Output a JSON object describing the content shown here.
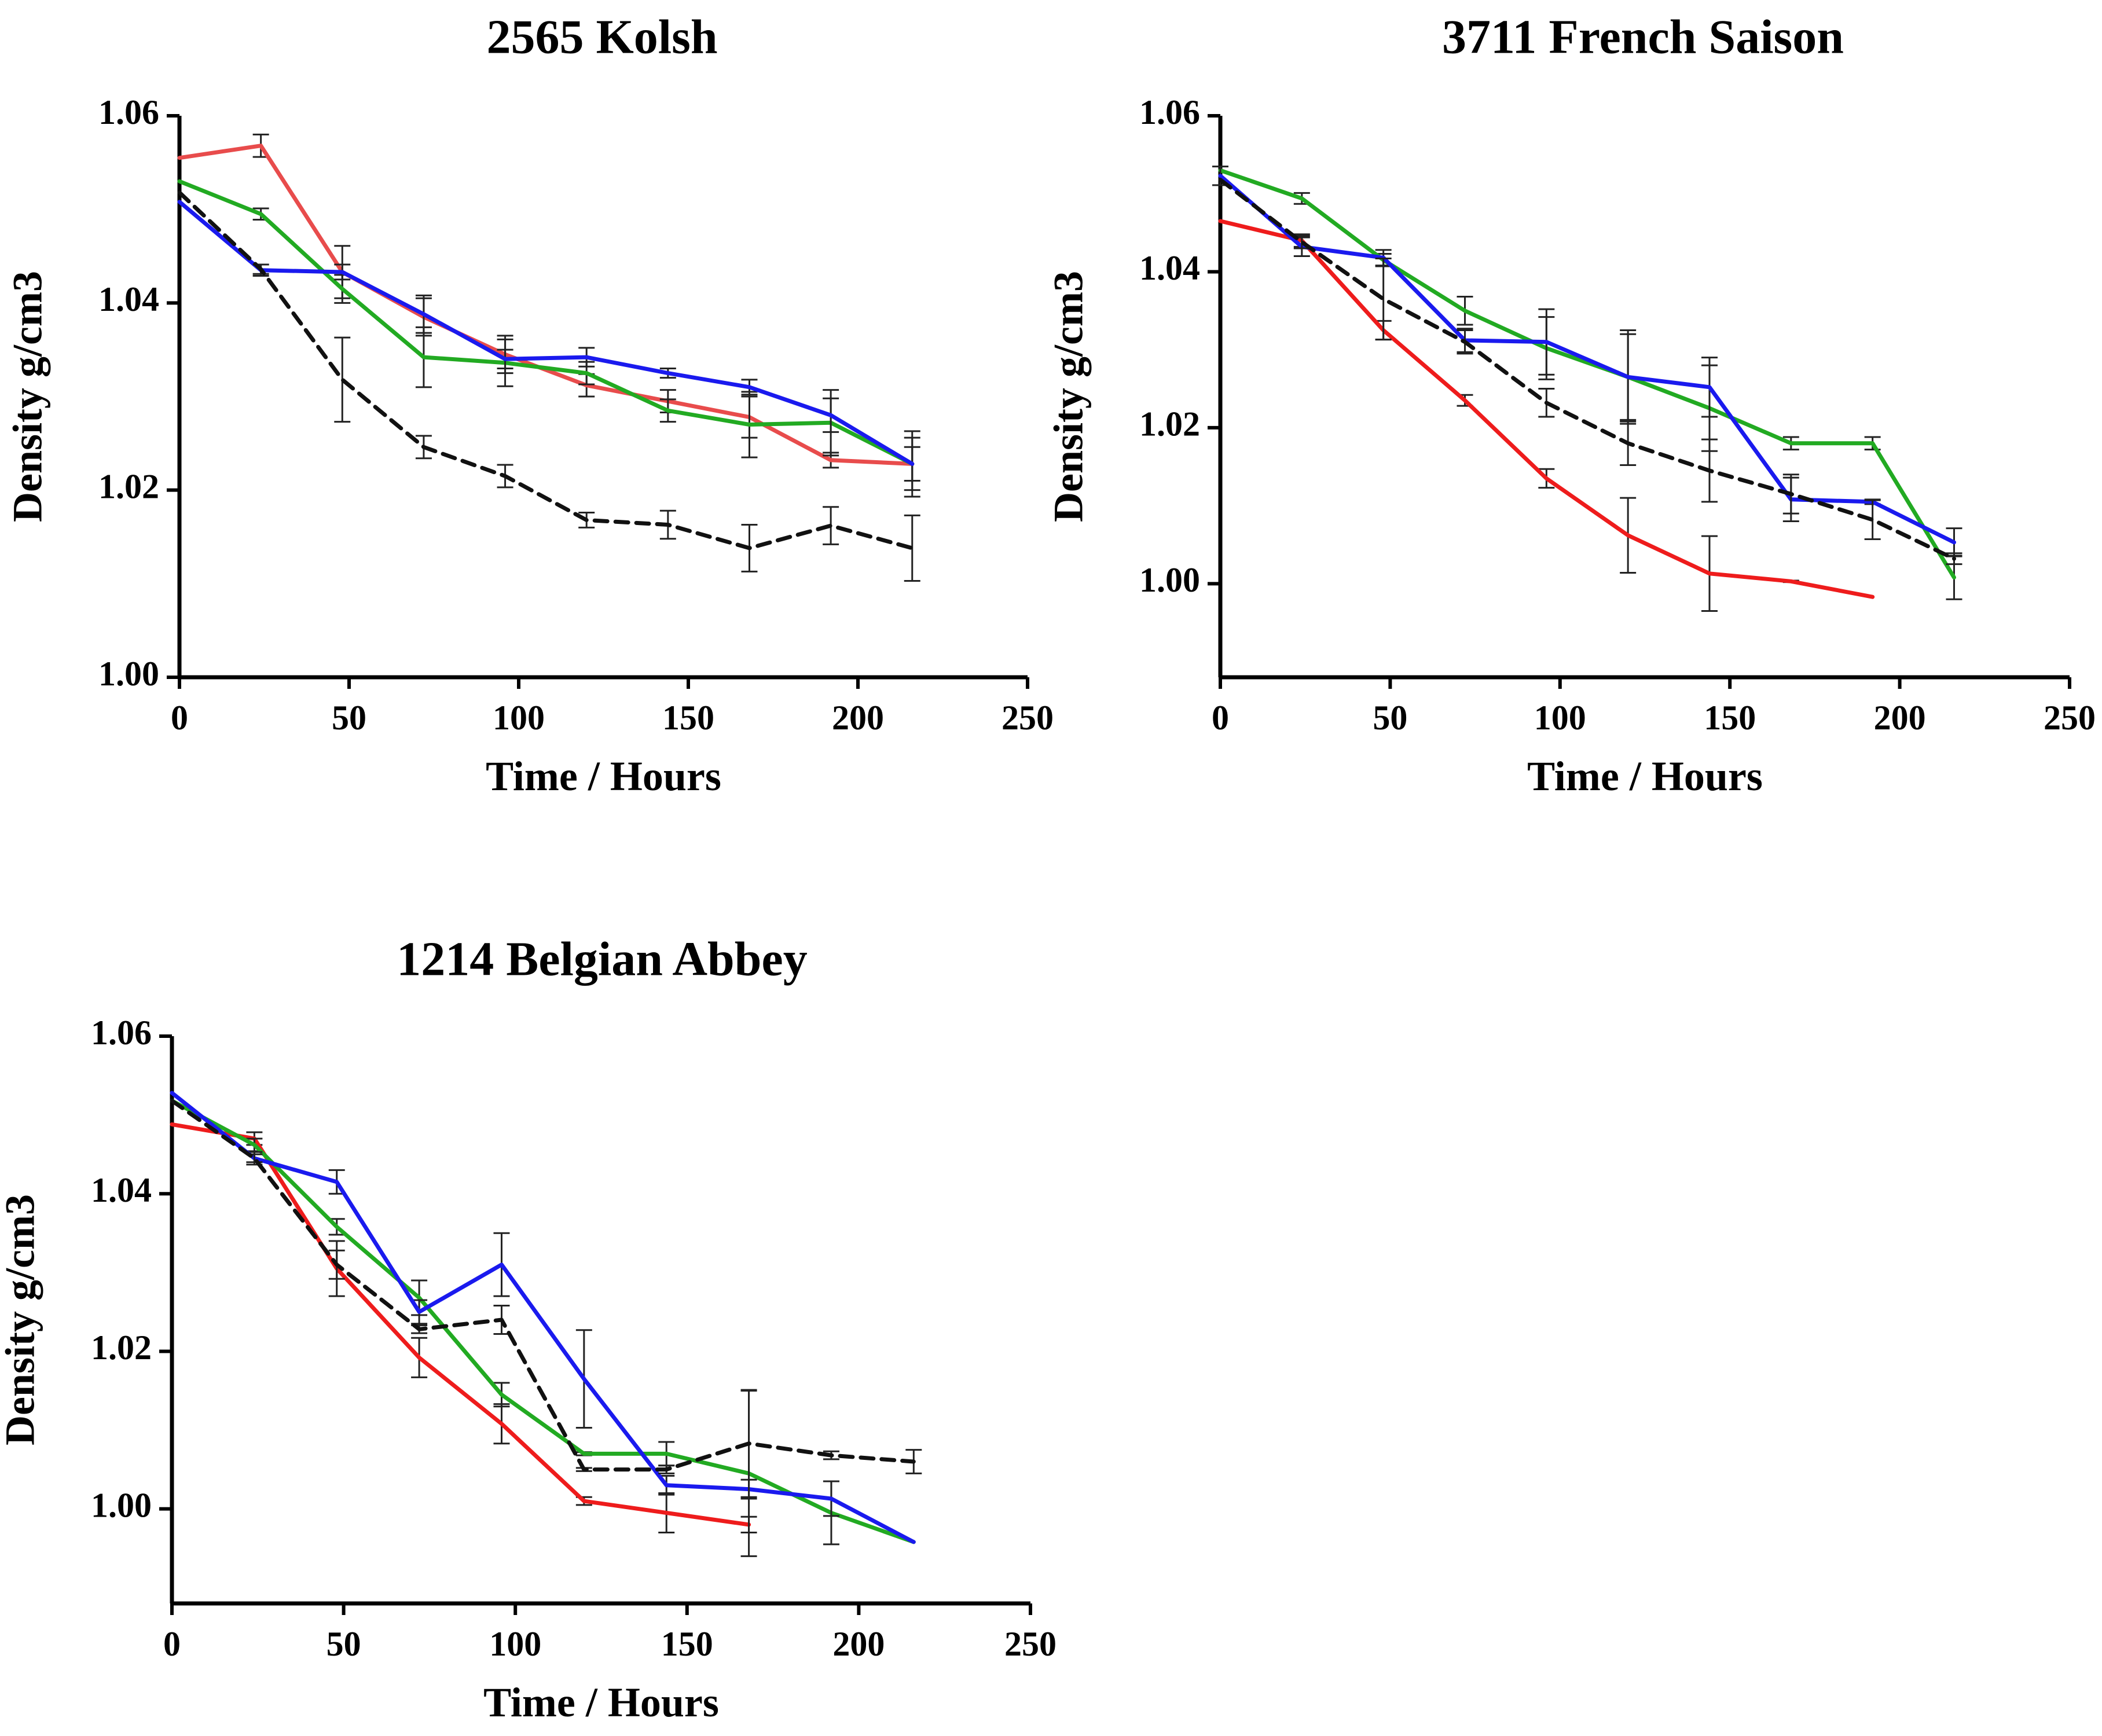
{
  "chart_data": [
    {
      "type": "line",
      "title": "2565 Kolsh",
      "xlabel": "Time / Hours",
      "ylabel": "Density g/cm3",
      "xlim": [
        0,
        250
      ],
      "ylim": [
        1.0,
        1.06
      ],
      "xticks": [
        0,
        50,
        100,
        150,
        200,
        250
      ],
      "xtick_labels": [
        "0",
        "50",
        "100",
        "150",
        "200",
        "250"
      ],
      "yticks": [
        1.0,
        1.02,
        1.04,
        1.06
      ],
      "ytick_labels": [
        "1.00",
        "1.02",
        "1.04",
        "1.06"
      ],
      "grid": false,
      "series": [
        {
          "color": "#e84c4c",
          "dash": "solid",
          "x": [
            0,
            24,
            48,
            72,
            96,
            120,
            144,
            168,
            192,
            216
          ],
          "values": [
            1.0555,
            1.0568,
            1.0433,
            1.0385,
            1.0345,
            1.0312,
            1.0295,
            1.0278,
            1.0232,
            1.0228
          ],
          "errors": [
            0,
            0.0012,
            0.0028,
            0.002,
            0.002,
            0.0012,
            0.0012,
            0.0022,
            0.0008,
            0.0035
          ]
        },
        {
          "color": "#22aa22",
          "dash": "solid",
          "x": [
            0,
            24,
            48,
            72,
            96,
            120,
            144,
            168,
            192,
            216
          ],
          "values": [
            1.053,
            1.0495,
            1.0415,
            1.0342,
            1.0336,
            1.0325,
            1.0285,
            1.027,
            1.0272,
            1.0228
          ],
          "errors": [
            0,
            0.0006,
            0.0015,
            0.0032,
            0.0025,
            0.0012,
            0.0012,
            0.0035,
            0.0035,
            0.0028
          ]
        },
        {
          "color": "#1a1aee",
          "dash": "solid",
          "x": [
            0,
            24,
            48,
            72,
            96,
            120,
            144,
            168,
            192,
            216
          ],
          "values": [
            1.0508,
            1.0435,
            1.0433,
            1.0388,
            1.034,
            1.0342,
            1.0325,
            1.031,
            1.028,
            1.0228
          ],
          "errors": [
            0,
            0.0006,
            0.0008,
            0.002,
            0.001,
            0.001,
            0.0005,
            0.0008,
            0.0018,
            0.0018
          ]
        },
        {
          "color": "#111111",
          "dash": "dashed",
          "x": [
            0,
            24,
            48,
            72,
            96,
            120,
            144,
            168,
            192,
            216
          ],
          "values": [
            1.0518,
            1.0436,
            1.0318,
            1.0246,
            1.0215,
            1.0168,
            1.0163,
            1.0138,
            1.0162,
            1.0138
          ],
          "errors": [
            0,
            0.0005,
            0.0045,
            0.0012,
            0.0012,
            0.0008,
            0.0015,
            0.0025,
            0.002,
            0.0035
          ]
        }
      ]
    },
    {
      "type": "line",
      "title": "3711 French Saison",
      "xlabel": "Time / Hours",
      "ylabel": "Density g/cm3",
      "xlim": [
        0,
        250
      ],
      "ylim": [
        0.988,
        1.06
      ],
      "xticks": [
        0,
        50,
        100,
        150,
        200,
        250
      ],
      "xtick_labels": [
        "0",
        "50",
        "100",
        "150",
        "200",
        "250"
      ],
      "yticks": [
        1.0,
        1.02,
        1.04,
        1.06
      ],
      "ytick_labels": [
        "1.00",
        "1.02",
        "1.04",
        "1.06"
      ],
      "grid": false,
      "series": [
        {
          "color": "#ee1c1c",
          "dash": "solid",
          "x": [
            0,
            24,
            48,
            72,
            96,
            120,
            144,
            168,
            192
          ],
          "values": [
            1.0465,
            1.044,
            1.0325,
            1.0235,
            1.0135,
            1.0062,
            1.0013,
            1.0003,
            0.9983
          ],
          "errors": [
            0,
            0.0008,
            0.0012,
            0.0007,
            0.0012,
            0.0048,
            0.0048,
            0.0001,
            0
          ]
        },
        {
          "color": "#22aa22",
          "dash": "solid",
          "x": [
            0,
            24,
            48,
            72,
            96,
            120,
            144,
            168,
            192,
            216
          ],
          "values": [
            1.053,
            1.0494,
            1.0415,
            1.035,
            1.0302,
            1.0265,
            1.0225,
            1.018,
            1.018,
            1.0008
          ],
          "errors": [
            0,
            0.0007,
            0.0008,
            0.0018,
            0.004,
            0.0055,
            0.0055,
            0.0008,
            0.0008,
            0.0028
          ]
        },
        {
          "color": "#1a1aee",
          "dash": "solid",
          "x": [
            0,
            24,
            48,
            72,
            96,
            120,
            144,
            168,
            192,
            216
          ],
          "values": [
            1.0523,
            1.0432,
            1.0418,
            1.0312,
            1.031,
            1.0265,
            1.0252,
            1.0108,
            1.0105,
            1.0053
          ],
          "errors": [
            0.0012,
            0.0012,
            0.001,
            0.0015,
            0.0042,
            0.006,
            0.0038,
            0.0028,
            0.0003,
            0.0018
          ]
        },
        {
          "color": "#111111",
          "dash": "dashed",
          "x": [
            0,
            24,
            48,
            72,
            96,
            120,
            144,
            168,
            192,
            216
          ],
          "values": [
            1.0518,
            1.0438,
            1.0365,
            1.031,
            1.0232,
            1.018,
            1.0145,
            1.0115,
            1.0082,
            1.0032
          ],
          "errors": [
            0,
            0.0008,
            0.0052,
            0.0015,
            0.0018,
            0.0028,
            0.004,
            0.0025,
            0.0025,
            0.0007
          ]
        }
      ]
    },
    {
      "type": "line",
      "title": "1214 Belgian Abbey",
      "xlabel": "Time / Hours",
      "ylabel": "Density g/cm3",
      "xlim": [
        0,
        250
      ],
      "ylim": [
        0.988,
        1.06
      ],
      "xticks": [
        0,
        50,
        100,
        150,
        200,
        250
      ],
      "xtick_labels": [
        "0",
        "50",
        "100",
        "150",
        "200",
        "250"
      ],
      "yticks": [
        1.0,
        1.02,
        1.04,
        1.06
      ],
      "ytick_labels": [
        "1.00",
        "1.02",
        "1.04",
        "1.06"
      ],
      "grid": false,
      "series": [
        {
          "color": "#ee1c1c",
          "dash": "solid",
          "x": [
            0,
            24,
            48,
            72,
            96,
            120,
            144,
            168
          ],
          "values": [
            1.0488,
            1.047,
            1.0305,
            1.0192,
            1.0108,
            1.001,
            0.9995,
            0.998
          ],
          "errors": [
            0,
            0.0008,
            0.0035,
            0.0025,
            0.0025,
            0.0005,
            0.0025,
            0.001
          ]
        },
        {
          "color": "#22aa22",
          "dash": "solid",
          "x": [
            0,
            24,
            48,
            72,
            96,
            120,
            144,
            168,
            192,
            216
          ],
          "values": [
            1.0518,
            1.0462,
            1.0358,
            1.0268,
            1.0145,
            1.007,
            1.007,
            1.0045,
            0.9995,
            0.9958
          ],
          "errors": [
            0,
            0.0008,
            0.001,
            0.0022,
            0.0015,
            0.0002,
            0.0015,
            0.0105,
            0.004,
            0
          ]
        },
        {
          "color": "#1a1aee",
          "dash": "solid",
          "x": [
            0,
            24,
            48,
            72,
            96,
            120,
            144,
            168,
            192,
            216
          ],
          "values": [
            1.0528,
            1.0445,
            1.0415,
            1.025,
            1.031,
            1.0165,
            1.003,
            1.0025,
            1.0013,
            0.9958
          ],
          "errors": [
            0,
            0.0008,
            0.0015,
            0.0015,
            0.004,
            0.0062,
            0.0012,
            0.0012,
            0.0022,
            0
          ]
        },
        {
          "color": "#111111",
          "dash": "dashed",
          "x": [
            0,
            24,
            48,
            72,
            96,
            120,
            144,
            168,
            192,
            216
          ],
          "values": [
            1.0518,
            1.0445,
            1.031,
            1.0228,
            1.024,
            1.005,
            1.005,
            1.0083,
            1.0068,
            1.006
          ],
          "errors": [
            0,
            0.0005,
            0.0018,
            0.0005,
            0.0018,
            0.0002,
            0.0005,
            0.0068,
            0.0005,
            0.0015
          ]
        }
      ]
    }
  ]
}
